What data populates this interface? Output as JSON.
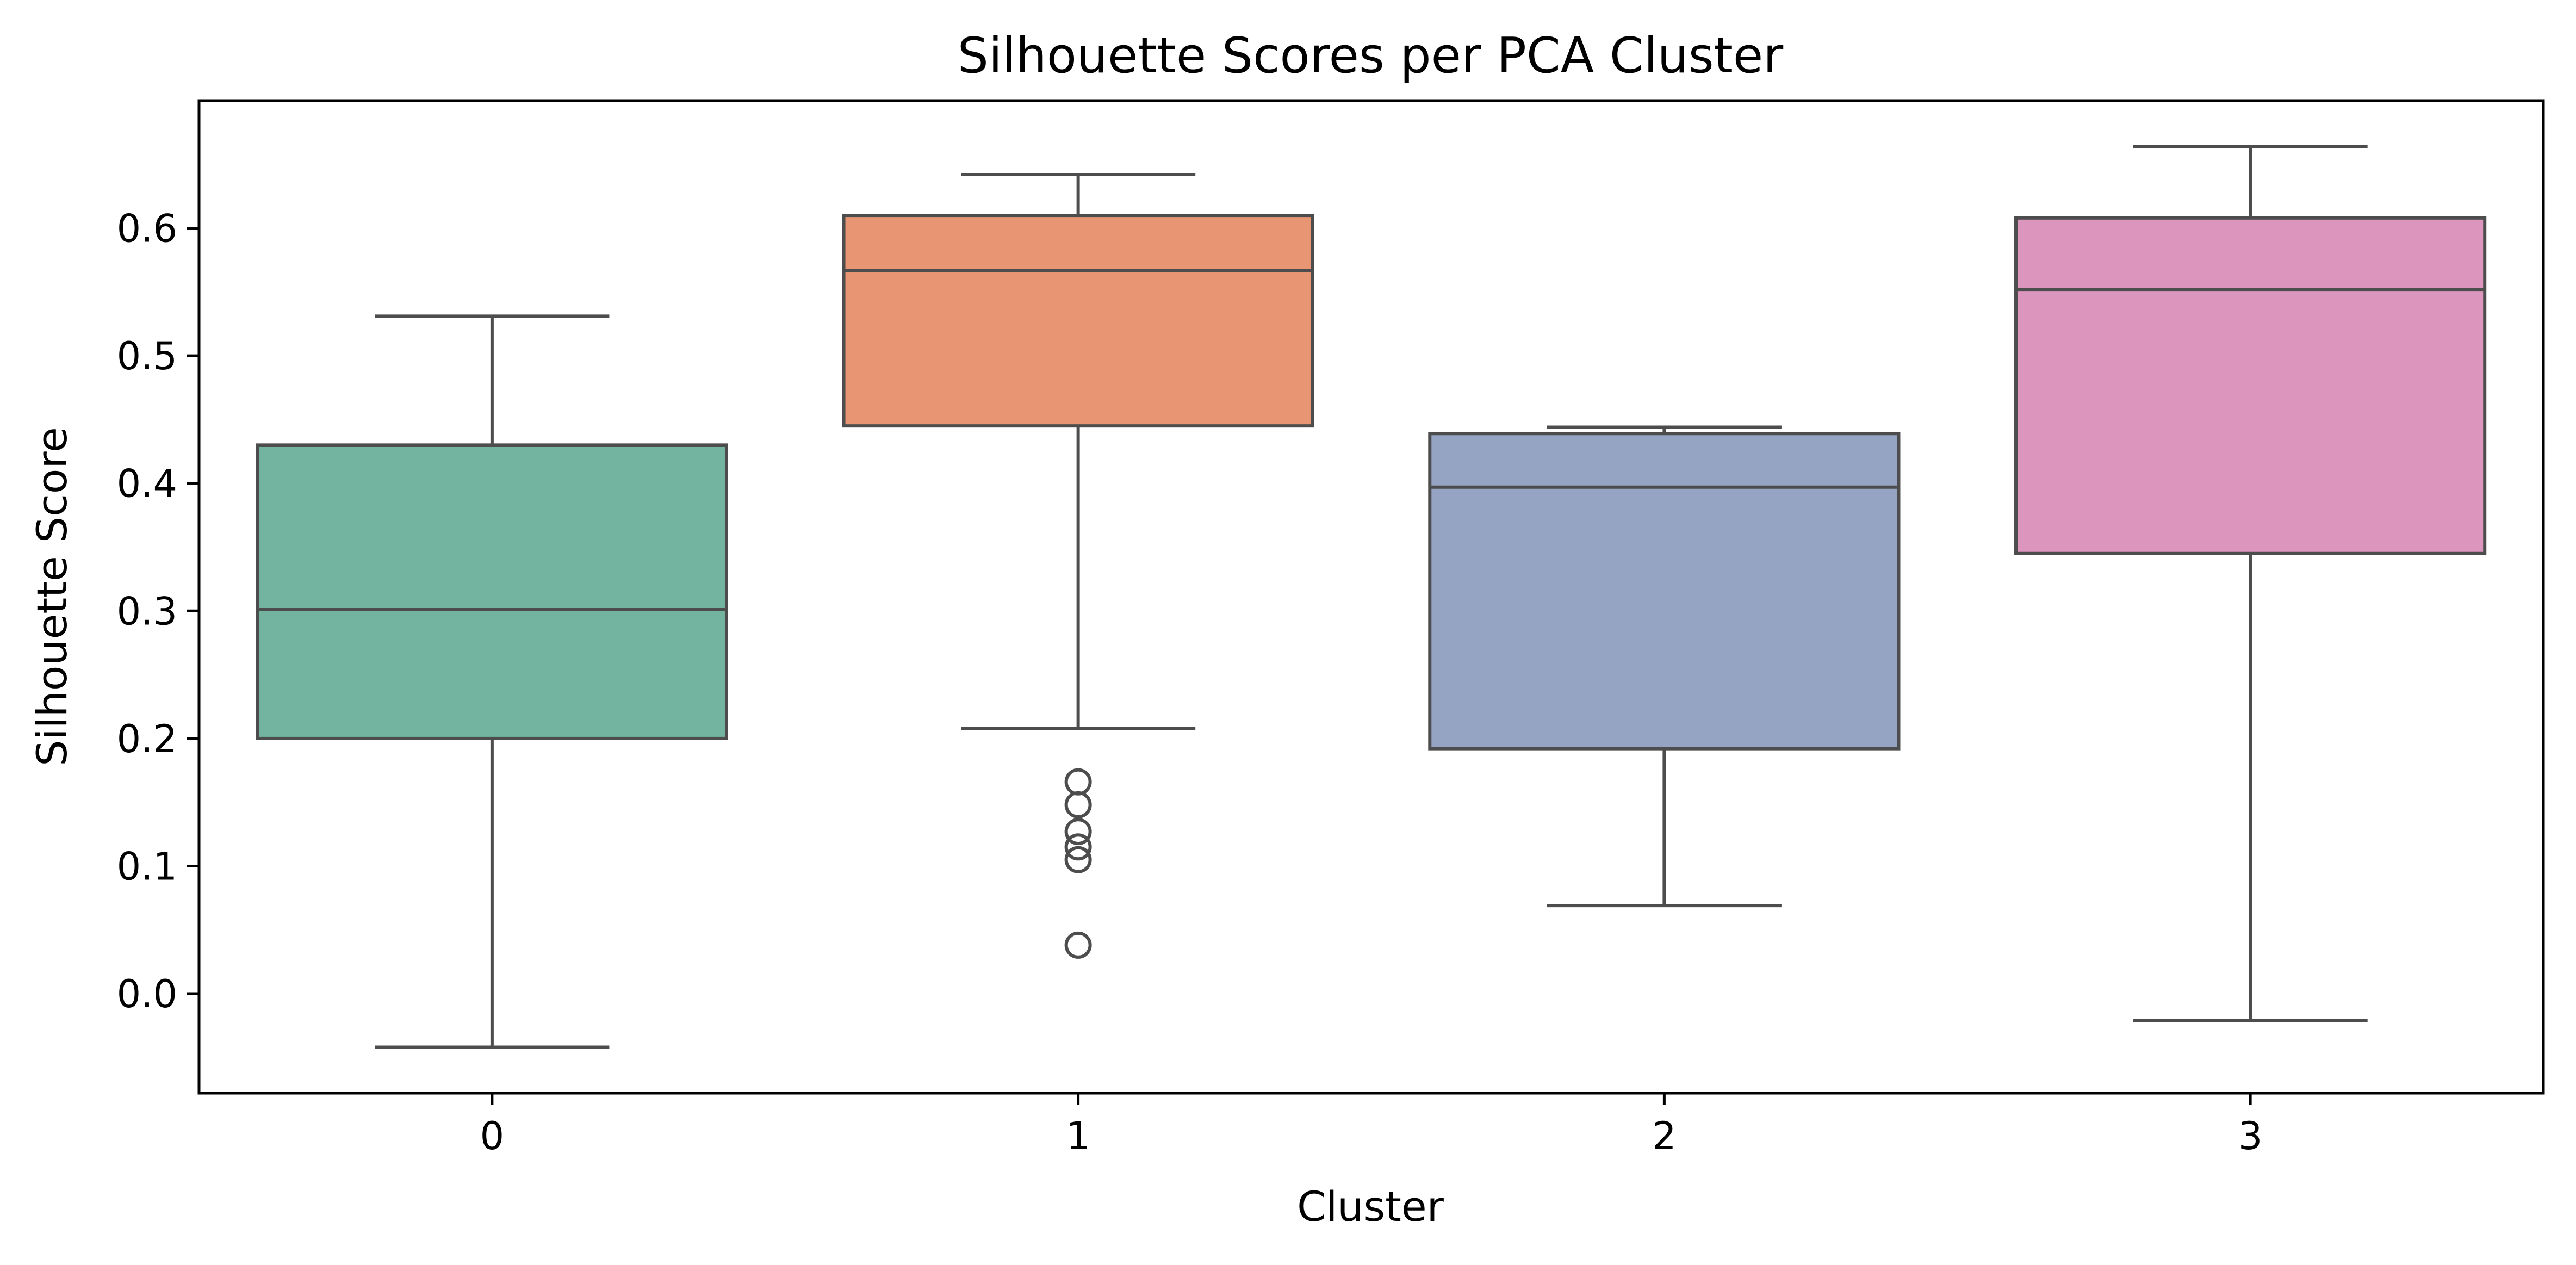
{
  "chart_data": {
    "type": "box",
    "title": "Silhouette Scores per PCA Cluster",
    "xlabel": "Cluster",
    "ylabel": "Silhouette Score",
    "ylim": [
      -0.078,
      0.7
    ],
    "yticks": [
      0.0,
      0.1,
      0.2,
      0.3,
      0.4,
      0.5,
      0.6
    ],
    "ytick_labels": [
      "0.0",
      "0.1",
      "0.2",
      "0.3",
      "0.4",
      "0.5",
      "0.6"
    ],
    "grid": false,
    "legend": "none",
    "categories": [
      "0",
      "1",
      "2",
      "3"
    ],
    "boxes": [
      {
        "category": "0",
        "whisker_low": -0.042,
        "q1": 0.2,
        "median": 0.301,
        "q3": 0.43,
        "whisker_high": 0.531,
        "outliers": [],
        "color": "#73b4a0"
      },
      {
        "category": "1",
        "whisker_low": 0.208,
        "q1": 0.445,
        "median": 0.567,
        "q3": 0.61,
        "whisker_high": 0.642,
        "outliers": [
          0.166,
          0.148,
          0.127,
          0.115,
          0.105,
          0.038
        ],
        "color": "#e89574"
      },
      {
        "category": "2",
        "whisker_low": 0.069,
        "q1": 0.192,
        "median": 0.397,
        "q3": 0.439,
        "whisker_high": 0.444,
        "outliers": [],
        "color": "#95a4c2"
      },
      {
        "category": "3",
        "whisker_low": -0.021,
        "q1": 0.345,
        "median": 0.552,
        "q3": 0.608,
        "whisker_high": 0.664,
        "outliers": [],
        "color": "#dc95bd"
      }
    ]
  }
}
